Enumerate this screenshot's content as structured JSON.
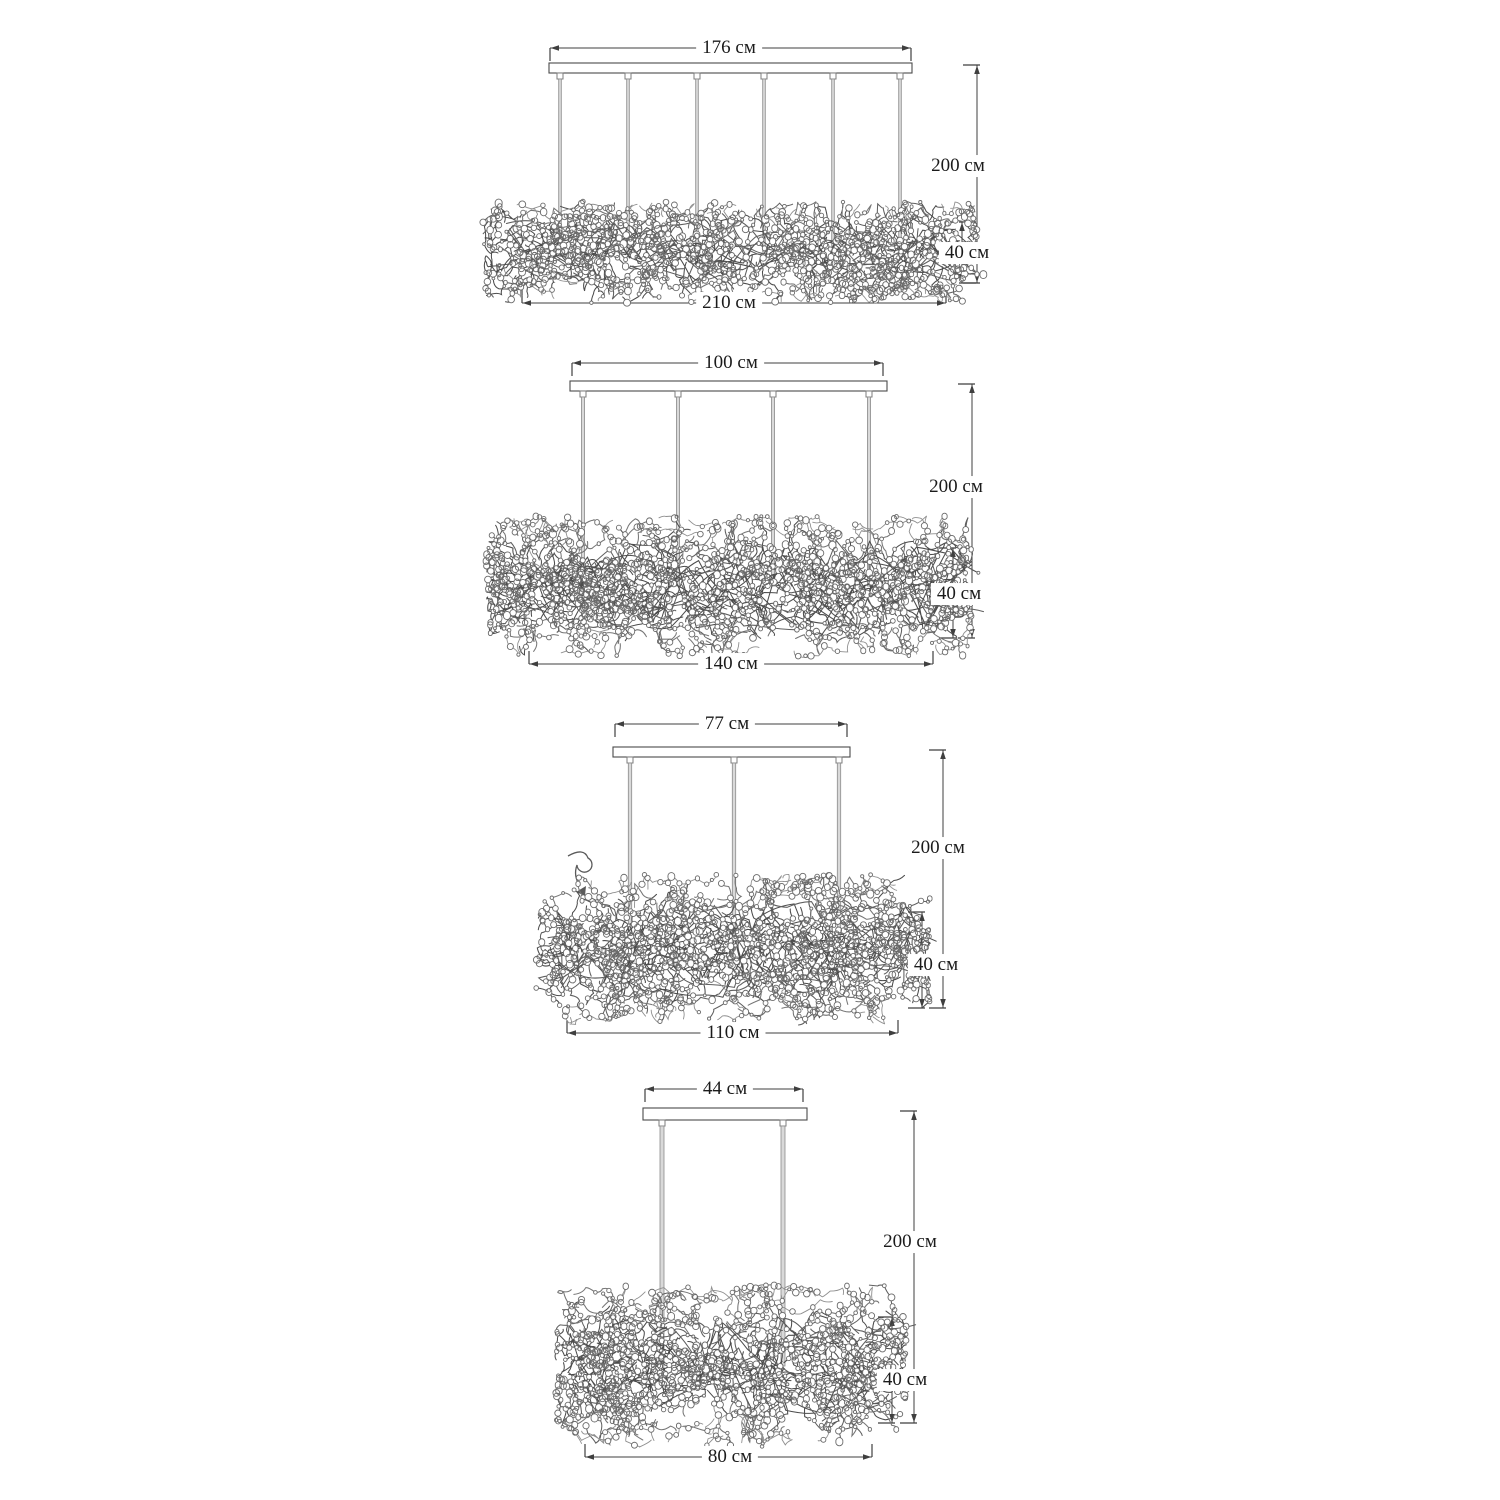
{
  "page": {
    "background": "#ffffff",
    "text_color": "#1b1b1b",
    "line_color": "#3f3f3f",
    "unit": "см"
  },
  "fixtures": [
    {
      "suspension_count": 6,
      "dimensions_cm": {
        "canopy_width": 176,
        "drop_height": 200,
        "body_height": 40,
        "body_width": 210
      },
      "labels": {
        "canopy_width": "176 см",
        "drop_height": "200 см",
        "body_height": "40 см",
        "body_width": "210 см"
      }
    },
    {
      "suspension_count": 4,
      "dimensions_cm": {
        "canopy_width": 100,
        "drop_height": 200,
        "body_height": 40,
        "body_width": 140
      },
      "labels": {
        "canopy_width": "100 см",
        "drop_height": "200 см",
        "body_height": "40 см",
        "body_width": "140 см"
      }
    },
    {
      "suspension_count": 3,
      "dimensions_cm": {
        "canopy_width": 77,
        "drop_height": 200,
        "body_height": 40,
        "body_width": 110
      },
      "labels": {
        "canopy_width": "77 см",
        "drop_height": "200 см",
        "body_height": "40 см",
        "body_width": "110 см"
      }
    },
    {
      "suspension_count": 2,
      "dimensions_cm": {
        "canopy_width": 44,
        "drop_height": 200,
        "body_height": 40,
        "body_width": 80
      },
      "labels": {
        "canopy_width": "44 см",
        "drop_height": "200 см",
        "body_height": "40 см",
        "body_width": "80 см"
      }
    }
  ]
}
